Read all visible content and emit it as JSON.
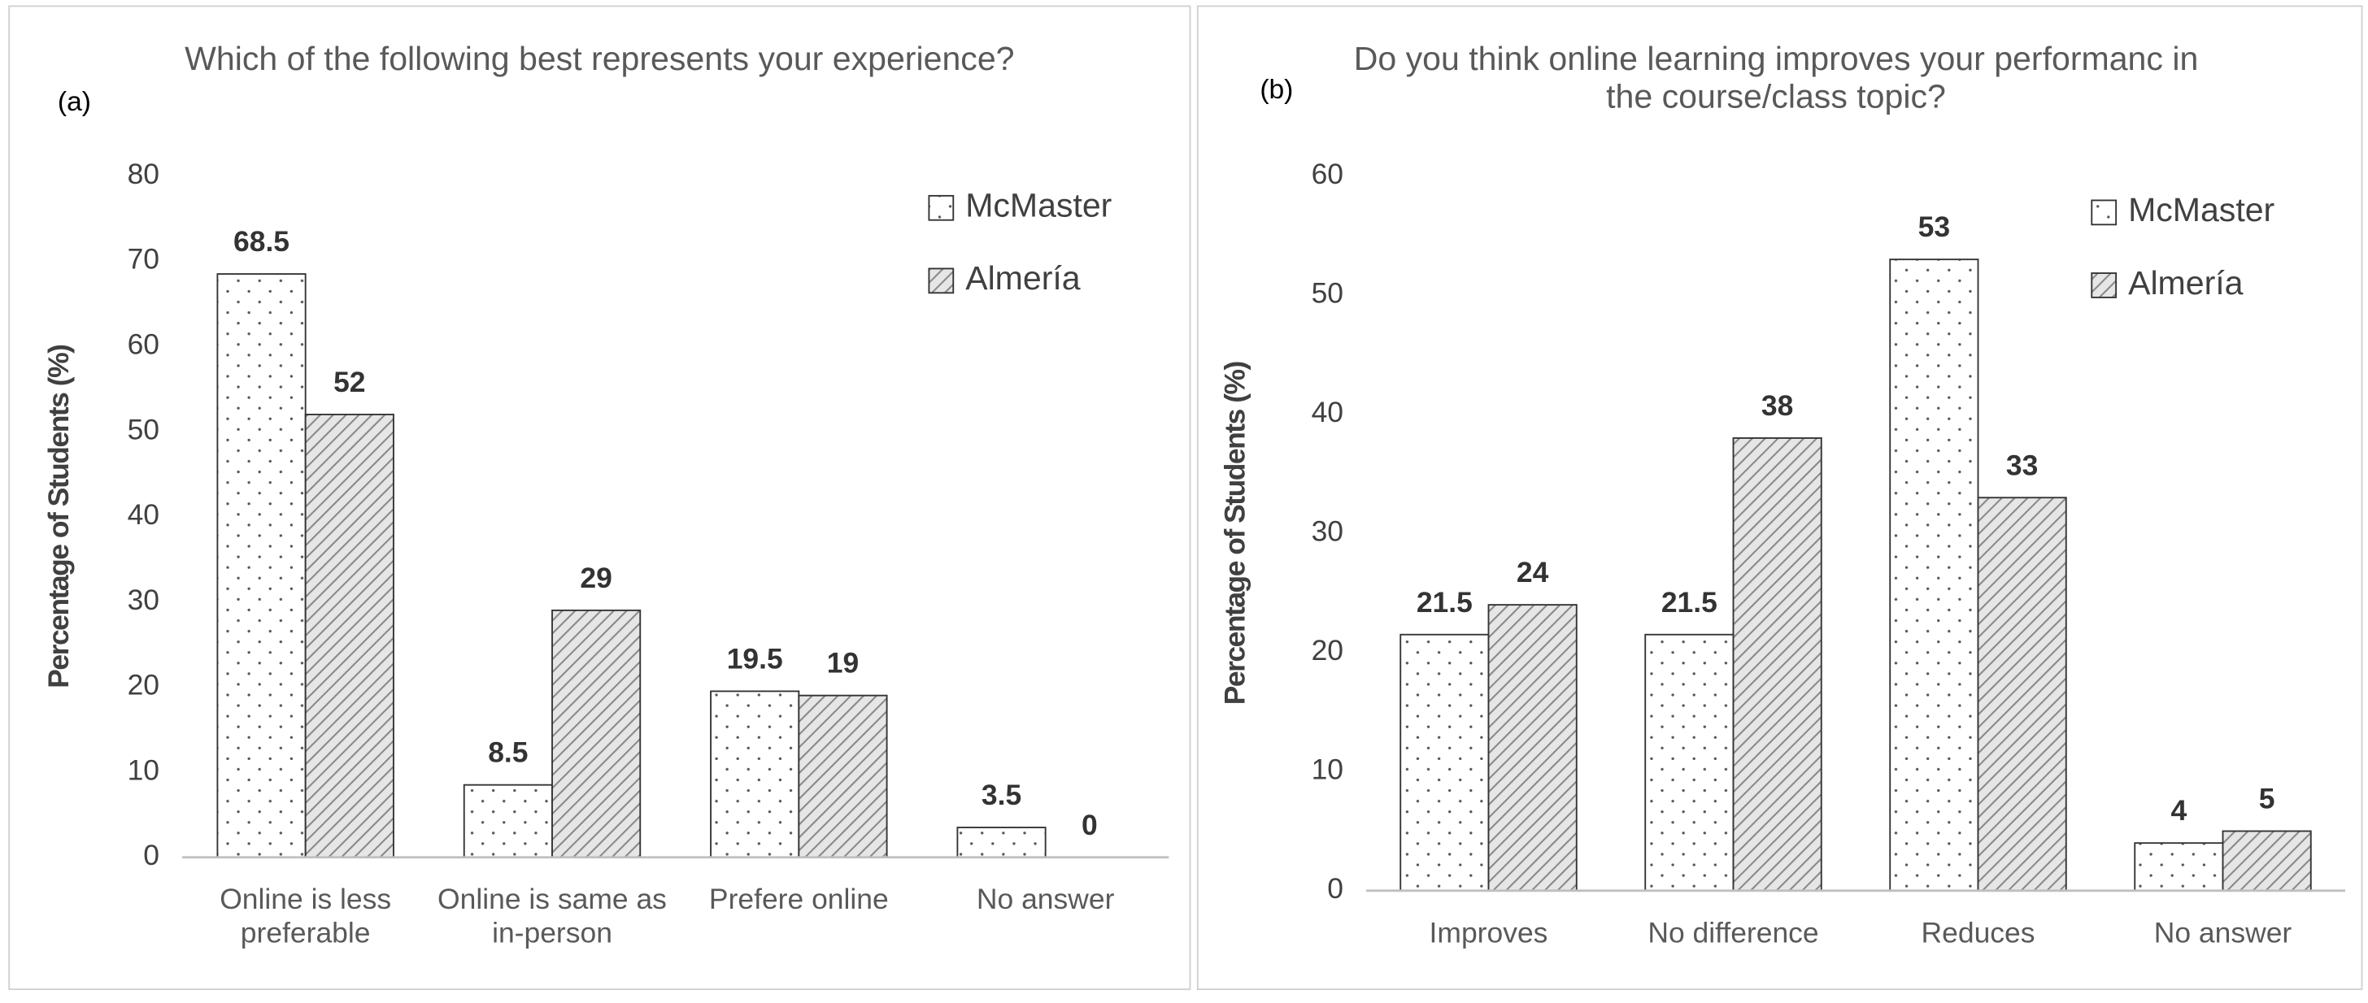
{
  "chart_data": [
    {
      "type": "bar",
      "panel_label": "(a)",
      "title": "Which of the following best represents your experience?",
      "y_label": "Percentage of Students (%)",
      "categories": [
        "Online is less preferable",
        "Online is same as in-person",
        "Prefere online",
        "No answer"
      ],
      "series": [
        {
          "name": "McMaster",
          "color": "#ffffff",
          "pattern": "dots",
          "values": [
            68.5,
            8.5,
            19.5,
            3.5
          ]
        },
        {
          "name": "Almería",
          "color": "#e6e6e6",
          "pattern": "hatch",
          "values": [
            52,
            29,
            19,
            0
          ]
        }
      ],
      "ylim": [
        0,
        80
      ],
      "yticks": [
        0,
        10,
        20,
        30,
        40,
        50,
        60,
        70,
        80
      ],
      "grid": false,
      "legend": "top-right"
    },
    {
      "type": "bar",
      "panel_label": "(b)",
      "title": "Do you think online learning improves your performanc in the course/class topic?",
      "y_label": "Percentage of Students (%)",
      "categories": [
        "Improves",
        "No difference",
        "Reduces",
        "No answer"
      ],
      "series": [
        {
          "name": "McMaster",
          "color": "#ffffff",
          "pattern": "dots",
          "values": [
            21.5,
            21.5,
            53,
            4
          ]
        },
        {
          "name": "Almería",
          "color": "#e6e6e6",
          "pattern": "hatch",
          "values": [
            24,
            38,
            33,
            5
          ]
        }
      ],
      "ylim": [
        0,
        60
      ],
      "yticks": [
        0,
        10,
        20,
        30,
        40,
        50,
        60
      ],
      "grid": false,
      "legend": "top-right"
    }
  ]
}
